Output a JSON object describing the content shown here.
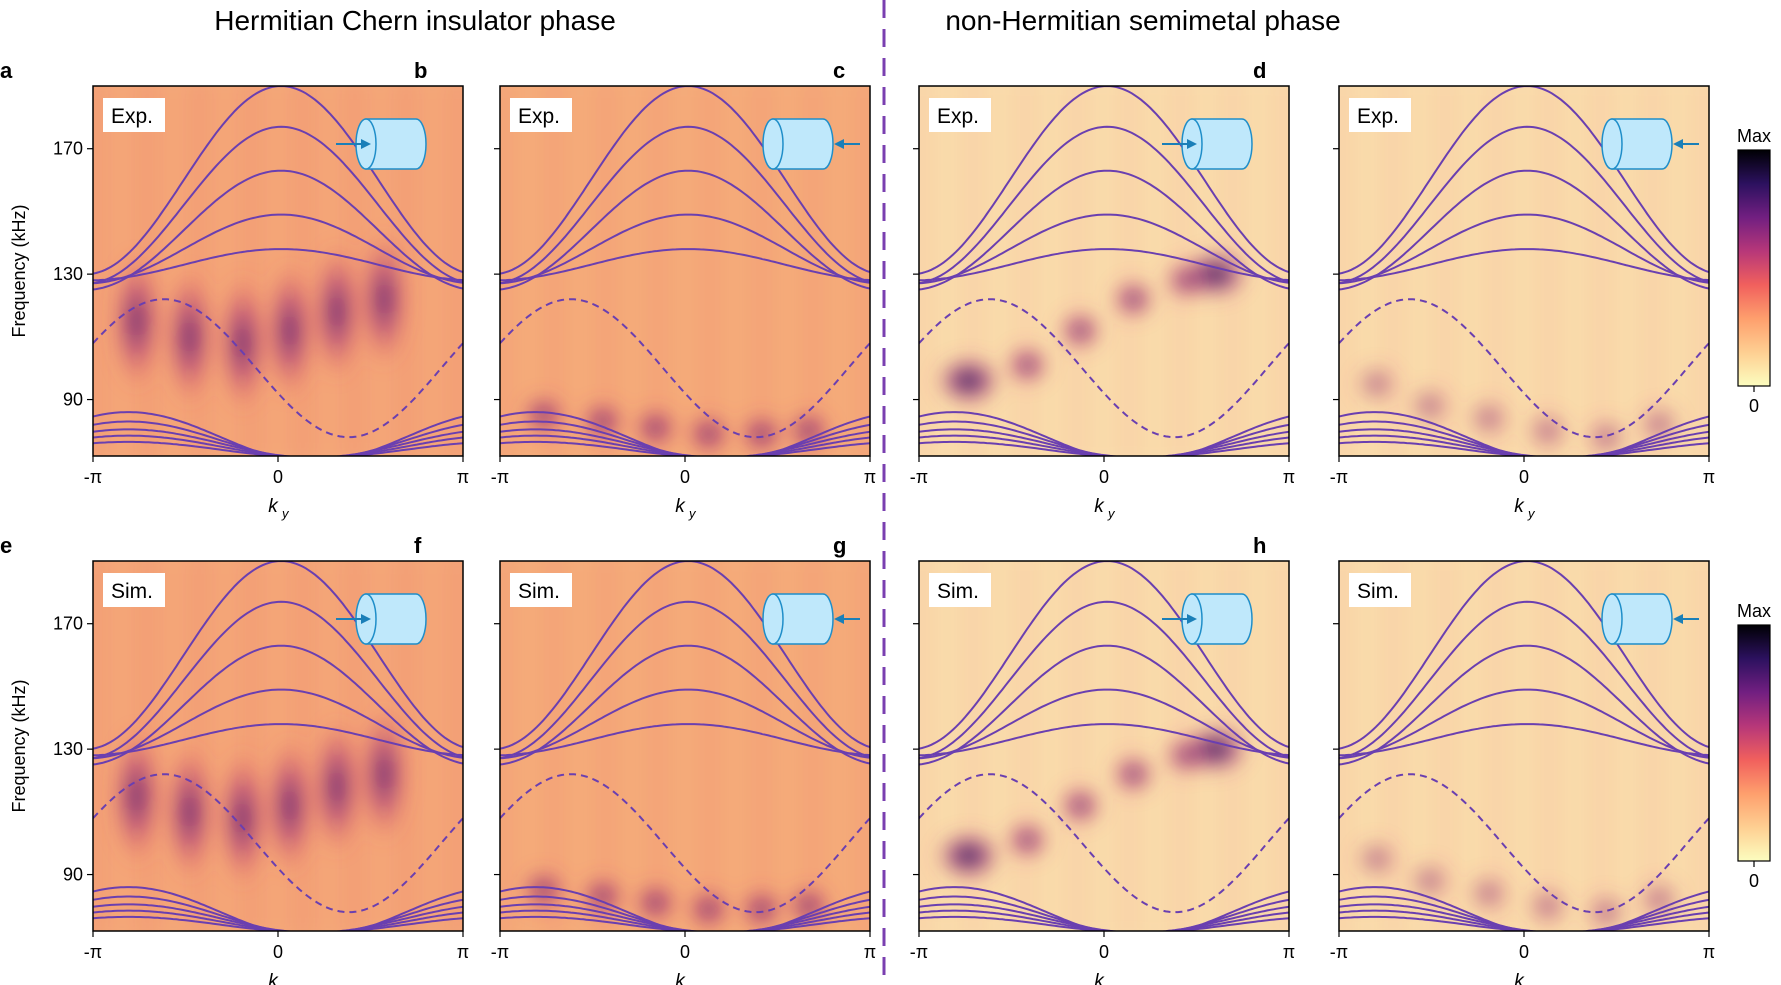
{
  "figure": {
    "headings": [
      "Hermitian Chern insulator phase",
      "non-Hermitian semimetal phase"
    ],
    "ylabel": "Frequency (kHz)",
    "xlabel_main": "k",
    "xlabel_sub": "y",
    "colorbar_top": "Max",
    "colorbar_bottom": "0"
  },
  "chart_data": [
    {
      "type": "heatmap",
      "panel": "a",
      "tag": "Exp.",
      "phase": "Hermitian Chern insulator phase",
      "source": "left",
      "x_ticks": [
        "-π",
        "0",
        "π"
      ],
      "xlim": [
        -3.1416,
        3.1416
      ],
      "y_ticks": [
        90,
        130,
        170
      ],
      "ylim": [
        72,
        190
      ],
      "ylabel": "Frequency (kHz)",
      "xlabel": "k_y",
      "hotspots": [
        [
          -2.4,
          115
        ],
        [
          -1.5,
          110
        ],
        [
          -0.6,
          108
        ],
        [
          0.2,
          112
        ],
        [
          1.0,
          118
        ],
        [
          1.8,
          122
        ]
      ]
    },
    {
      "type": "heatmap",
      "panel": "b",
      "tag": "Exp.",
      "phase": "Hermitian Chern insulator phase",
      "source": "right",
      "x_ticks": [
        "-π",
        "0",
        "π"
      ],
      "xlim": [
        -3.1416,
        3.1416
      ],
      "y_ticks": [
        90,
        130,
        170
      ],
      "ylim": [
        72,
        190
      ],
      "xlabel": "k_y",
      "hotspots": [
        [
          -2.4,
          85
        ],
        [
          -1.4,
          83
        ],
        [
          -0.5,
          81
        ],
        [
          0.4,
          79
        ],
        [
          1.3,
          79
        ],
        [
          2.1,
          80
        ]
      ]
    },
    {
      "type": "heatmap",
      "panel": "c",
      "tag": "Exp.",
      "phase": "non-Hermitian semimetal phase",
      "source": "left",
      "x_ticks": [
        "-π",
        "0",
        "π"
      ],
      "xlim": [
        -3.1416,
        3.1416
      ],
      "y_ticks": [
        90,
        130,
        170
      ],
      "ylim": [
        72,
        190
      ],
      "xlabel": "k_y",
      "hotspots": [
        [
          -2.3,
          96
        ],
        [
          -1.3,
          101
        ],
        [
          -0.4,
          112
        ],
        [
          0.5,
          122
        ],
        [
          1.4,
          128
        ],
        [
          1.9,
          130
        ]
      ]
    },
    {
      "type": "heatmap",
      "panel": "d",
      "tag": "Exp.",
      "phase": "non-Hermitian semimetal phase",
      "source": "right",
      "x_ticks": [
        "-π",
        "0",
        "π"
      ],
      "xlim": [
        -3.1416,
        3.1416
      ],
      "y_ticks": [
        90,
        130,
        170
      ],
      "ylim": [
        72,
        190
      ],
      "xlabel": "k_y",
      "hotspots": [
        [
          -2.5,
          95
        ],
        [
          -1.6,
          88
        ],
        [
          -0.6,
          84
        ],
        [
          0.4,
          80
        ],
        [
          1.4,
          78
        ],
        [
          2.3,
          82
        ]
      ]
    },
    {
      "type": "heatmap",
      "panel": "e",
      "tag": "Sim.",
      "phase": "Hermitian Chern insulator phase",
      "source": "left",
      "x_ticks": [
        "-π",
        "0",
        "π"
      ],
      "xlim": [
        -3.1416,
        3.1416
      ],
      "y_ticks": [
        90,
        130,
        170
      ],
      "ylim": [
        72,
        190
      ],
      "ylabel": "Frequency (kHz)",
      "xlabel": "k_y",
      "hotspots": [
        [
          -2.4,
          115
        ],
        [
          -1.5,
          110
        ],
        [
          -0.6,
          108
        ],
        [
          0.2,
          112
        ],
        [
          1.0,
          118
        ],
        [
          1.8,
          122
        ]
      ]
    },
    {
      "type": "heatmap",
      "panel": "f",
      "tag": "Sim.",
      "phase": "Hermitian Chern insulator phase",
      "source": "right",
      "x_ticks": [
        "-π",
        "0",
        "π"
      ],
      "xlim": [
        -3.1416,
        3.1416
      ],
      "y_ticks": [
        90,
        130,
        170
      ],
      "ylim": [
        72,
        190
      ],
      "xlabel": "k_y",
      "hotspots": [
        [
          -2.4,
          85
        ],
        [
          -1.4,
          83
        ],
        [
          -0.5,
          81
        ],
        [
          0.4,
          79
        ],
        [
          1.3,
          79
        ],
        [
          2.1,
          80
        ]
      ]
    },
    {
      "type": "heatmap",
      "panel": "g",
      "tag": "Sim.",
      "phase": "non-Hermitian semimetal phase",
      "source": "left",
      "x_ticks": [
        "-π",
        "0",
        "π"
      ],
      "xlim": [
        -3.1416,
        3.1416
      ],
      "y_ticks": [
        90,
        130,
        170
      ],
      "ylim": [
        72,
        190
      ],
      "xlabel": "k_y",
      "hotspots": [
        [
          -2.3,
          96
        ],
        [
          -1.3,
          101
        ],
        [
          -0.4,
          112
        ],
        [
          0.5,
          122
        ],
        [
          1.4,
          128
        ],
        [
          1.9,
          130
        ]
      ]
    },
    {
      "type": "heatmap",
      "panel": "h",
      "tag": "Sim.",
      "phase": "non-Hermitian semimetal phase",
      "source": "right",
      "x_ticks": [
        "-π",
        "0",
        "π"
      ],
      "xlim": [
        -3.1416,
        3.1416
      ],
      "y_ticks": [
        90,
        130,
        170
      ],
      "ylim": [
        72,
        190
      ],
      "xlabel": "k_y",
      "hotspots": [
        [
          -2.5,
          95
        ],
        [
          -1.6,
          88
        ],
        [
          -0.6,
          84
        ],
        [
          0.4,
          80
        ],
        [
          1.4,
          78
        ],
        [
          2.3,
          82
        ]
      ]
    }
  ],
  "bands": {
    "upper": [
      [
        160,
        30
      ],
      [
        152,
        25
      ],
      [
        144,
        19
      ],
      [
        138,
        11
      ],
      [
        133,
        5
      ]
    ],
    "lower": [
      [
        78,
        8
      ],
      [
        77,
        6
      ],
      [
        76,
        4.5
      ],
      [
        75,
        3.5
      ],
      [
        74,
        2.5
      ]
    ],
    "dashed": [
      100,
      -22
    ],
    "color": "#6a3fb0"
  },
  "colors": {
    "colormap": [
      "#fcfdbf",
      "#fecf92",
      "#fe9f6d",
      "#f1605d",
      "#b73779",
      "#721f81",
      "#2c115f",
      "#000004"
    ],
    "background_hermitian": "#f6b27c",
    "background_semimetal": "#fbe3b0",
    "divider": "#7a3fb0",
    "cylinder_fill": "#bfe8fb",
    "cylinder_stroke": "#1f8ec9",
    "arrow": "#1a7fb8"
  }
}
